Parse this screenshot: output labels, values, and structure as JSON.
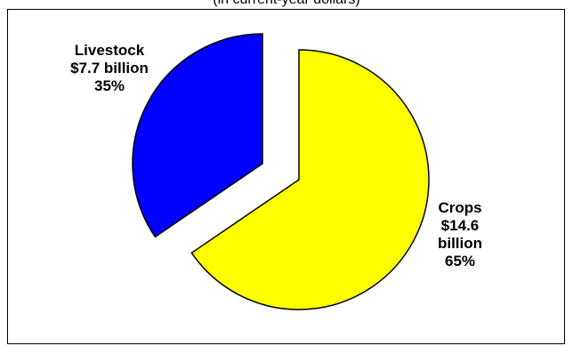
{
  "chart_data": {
    "type": "pie",
    "subtitle": "(in current-year dollars)",
    "exploded": true,
    "slices": [
      {
        "label": "Livestock",
        "value": 7.7,
        "value_text": "$7.7 billion",
        "percent": 35,
        "percent_text": "35%",
        "color": "#0000FF"
      },
      {
        "label": "Crops",
        "value": 14.6,
        "value_text_line1": "$14.6",
        "value_text_line2": "billion",
        "percent": 65,
        "percent_text": "65%",
        "color": "#FFFF00"
      }
    ]
  }
}
